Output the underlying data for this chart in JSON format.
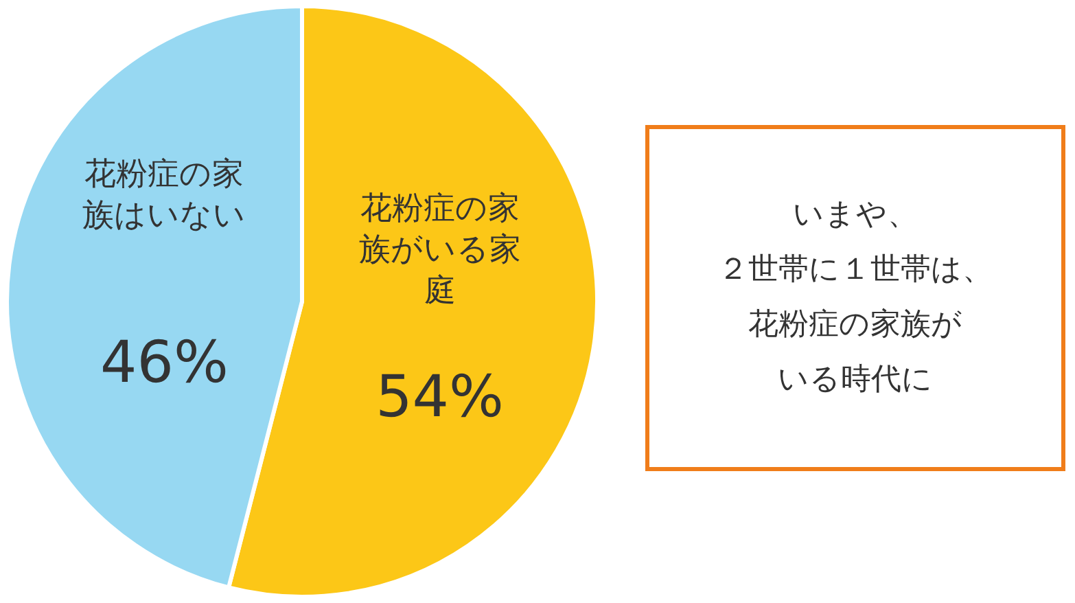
{
  "chart_data": {
    "type": "pie",
    "categories": [
      "花粉症の家族がいる家庭",
      "花粉症の家族はいない"
    ],
    "values": [
      54,
      46
    ],
    "colors": [
      "#fcc717",
      "#97d8f2"
    ],
    "value_labels": [
      "54%",
      "46%"
    ],
    "annotations": [
      "いまや、",
      "２世帯に１世帯は、",
      "花粉症の家族が",
      "いる時代に"
    ]
  }
}
